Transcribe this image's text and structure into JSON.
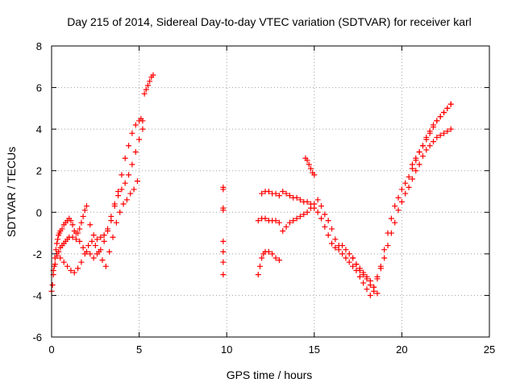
{
  "chart_data": {
    "type": "scatter",
    "title": "Day 215 of 2014, Sidereal Day-to-day VTEC variation (SDTVAR) for receiver karl",
    "xlabel": "GPS time / hours",
    "ylabel": "SDTVAR / TECUs",
    "xlim": [
      0,
      25
    ],
    "ylim": [
      -6,
      8
    ],
    "x_ticks": [
      "0",
      "5",
      "10",
      "15",
      "20",
      "25"
    ],
    "y_ticks": [
      "-6",
      "-4",
      "-2",
      "0",
      "2",
      "4",
      "6",
      "8"
    ],
    "grid": true,
    "marker": "+",
    "series": [
      {
        "name": "SDTVAR",
        "color": "#ff0000",
        "x": [
          0.0,
          0.05,
          0.1,
          0.15,
          0.2,
          0.25,
          0.3,
          0.35,
          0.4,
          0.45,
          0.5,
          0.6,
          0.7,
          0.8,
          0.9,
          1.0,
          1.1,
          1.2,
          1.3,
          1.4,
          1.5,
          1.6,
          1.7,
          1.8,
          1.9,
          2.0,
          2.2,
          2.4,
          2.6,
          2.8,
          3.0,
          3.2,
          3.4,
          3.6,
          3.8,
          4.0,
          4.2,
          4.4,
          4.6,
          4.8,
          5.0,
          5.1,
          5.2,
          5.3,
          5.4,
          5.5,
          5.6,
          5.7,
          5.8,
          0.1,
          0.2,
          0.3,
          0.4,
          0.5,
          0.6,
          0.7,
          0.8,
          0.9,
          1.0,
          1.2,
          1.4,
          1.6,
          1.8,
          2.0,
          2.2,
          2.4,
          2.6,
          2.8,
          3.0,
          3.2,
          3.4,
          3.6,
          3.8,
          4.0,
          4.2,
          4.4,
          4.6,
          4.8,
          5.0,
          5.2,
          0.3,
          0.5,
          0.7,
          0.9,
          1.1,
          1.3,
          1.5,
          1.7,
          1.9,
          2.1,
          2.3,
          2.5,
          2.7,
          2.9,
          3.1,
          3.3,
          3.5,
          3.7,
          3.9,
          4.1,
          4.3,
          4.5,
          4.7,
          4.9,
          9.8,
          9.8,
          9.8,
          9.8,
          9.8,
          9.8,
          9.8,
          9.8,
          11.8,
          11.9,
          12.0,
          12.1,
          12.2,
          12.4,
          12.6,
          12.8,
          13.0,
          13.2,
          13.4,
          13.6,
          13.8,
          14.0,
          14.2,
          14.4,
          14.6,
          14.8,
          15.0,
          15.2,
          15.4,
          15.6,
          15.8,
          16.0,
          16.2,
          16.4,
          16.6,
          16.8,
          17.0,
          17.2,
          17.4,
          17.6,
          17.8,
          18.0,
          18.2,
          18.4,
          18.6,
          18.8,
          19.0,
          19.2,
          19.4,
          19.6,
          19.8,
          20.0,
          20.2,
          20.4,
          20.6,
          20.8,
          21.0,
          21.2,
          21.4,
          21.6,
          21.8,
          22.0,
          22.2,
          22.4,
          22.6,
          22.8,
          12.0,
          12.2,
          12.4,
          12.6,
          12.8,
          13.0,
          13.2,
          13.4,
          13.6,
          13.8,
          14.0,
          14.2,
          14.4,
          14.6,
          14.8,
          15.0,
          15.2,
          15.4,
          15.6,
          15.8,
          16.0,
          16.2,
          16.4,
          16.6,
          16.8,
          17.0,
          17.2,
          17.4,
          17.6,
          17.8,
          18.0,
          18.2,
          18.4,
          18.6,
          18.8,
          19.0,
          19.2,
          19.4,
          19.6,
          19.8,
          20.0,
          20.2,
          20.4,
          20.6,
          20.8,
          21.0,
          21.2,
          21.4,
          21.6,
          21.8,
          22.0,
          22.2,
          22.4,
          22.6,
          22.8,
          11.8,
          12.0,
          12.2,
          12.4,
          12.6,
          12.8,
          13.0,
          14.5,
          14.6,
          14.7,
          14.8,
          14.9,
          15.0,
          20.6,
          20.8,
          21.0,
          21.2,
          21.4,
          21.6,
          21.8,
          22.0,
          22.2,
          22.4,
          22.6,
          22.8,
          17.2,
          17.4,
          17.6,
          17.8,
          18.0,
          18.2,
          18.4,
          18.6
        ],
        "y": [
          -3.8,
          -3.5,
          -3.0,
          -2.6,
          -2.2,
          -1.8,
          -1.5,
          -1.3,
          -1.1,
          -1.0,
          -0.9,
          -0.8,
          -0.6,
          -0.5,
          -0.4,
          -0.3,
          -0.4,
          -0.6,
          -0.9,
          -1.0,
          -1.0,
          -0.8,
          -0.5,
          -0.2,
          0.1,
          0.3,
          -0.6,
          -1.1,
          -1.3,
          -1.2,
          -1.1,
          -0.9,
          -0.4,
          0.3,
          1.0,
          1.8,
          2.6,
          3.2,
          3.8,
          4.2,
          4.4,
          4.5,
          4.4,
          5.7,
          5.9,
          6.1,
          6.3,
          6.5,
          6.6,
          -2.8,
          -2.5,
          -2.1,
          -1.9,
          -1.7,
          -1.6,
          -1.5,
          -1.4,
          -1.3,
          -1.2,
          -1.2,
          -1.3,
          -1.4,
          -1.7,
          -1.9,
          -2.0,
          -2.2,
          -2.0,
          -1.8,
          -1.4,
          -0.8,
          -0.2,
          0.4,
          0.8,
          1.1,
          1.4,
          1.8,
          2.3,
          2.9,
          3.5,
          4.0,
          -2.0,
          -2.2,
          -2.4,
          -2.6,
          -2.8,
          -2.9,
          -2.7,
          -2.4,
          -2.0,
          -1.6,
          -1.4,
          -1.6,
          -1.9,
          -2.3,
          -2.6,
          -1.9,
          -1.2,
          -0.5,
          0.0,
          0.4,
          0.6,
          0.9,
          1.1,
          1.5,
          1.2,
          1.1,
          0.2,
          0.1,
          -1.4,
          -1.9,
          -2.4,
          -3.0,
          -3.0,
          -2.6,
          -2.2,
          -2.0,
          -1.9,
          -1.9,
          -2.0,
          -2.2,
          -2.3,
          -0.9,
          -0.7,
          -0.5,
          -0.4,
          -0.3,
          -0.2,
          -0.1,
          0.0,
          0.2,
          0.4,
          0.6,
          0.3,
          -0.1,
          -0.4,
          -0.8,
          -1.3,
          -1.6,
          -1.6,
          -1.8,
          -2.0,
          -2.2,
          -2.5,
          -2.7,
          -2.9,
          -3.2,
          -3.5,
          -3.8,
          -3.2,
          -2.7,
          -2.2,
          -1.6,
          -1.0,
          -0.5,
          0.1,
          0.5,
          0.9,
          1.2,
          1.6,
          2.0,
          2.3,
          2.7,
          3.0,
          3.2,
          3.4,
          3.6,
          3.7,
          3.8,
          3.9,
          4.0,
          0.9,
          1.0,
          1.0,
          0.9,
          0.9,
          0.8,
          1.0,
          0.9,
          0.8,
          0.7,
          0.7,
          0.6,
          0.5,
          0.5,
          0.4,
          0.2,
          0.0,
          -0.3,
          -0.7,
          -1.1,
          -1.5,
          -1.7,
          -1.8,
          -2.0,
          -2.2,
          -2.4,
          -2.6,
          -2.8,
          -3.1,
          -3.4,
          -3.7,
          -4.0,
          -3.6,
          -3.1,
          -2.6,
          -1.8,
          -1.0,
          -0.3,
          0.3,
          0.7,
          1.1,
          1.4,
          1.7,
          2.1,
          2.5,
          2.9,
          3.2,
          3.6,
          3.9,
          4.2,
          4.4,
          4.6,
          4.8,
          5.0,
          5.2,
          -0.4,
          -0.3,
          -0.3,
          -0.4,
          -0.4,
          -0.4,
          -0.5,
          2.6,
          2.5,
          2.3,
          2.1,
          1.9,
          1.8,
          2.3,
          2.6,
          2.9,
          3.2,
          3.5,
          3.8,
          4.1,
          4.4,
          4.6,
          4.8,
          5.0,
          5.2,
          -2.2,
          -2.5,
          -2.8,
          -3.0,
          -3.1,
          -3.3,
          -3.6,
          -3.9
        ]
      }
    ]
  }
}
